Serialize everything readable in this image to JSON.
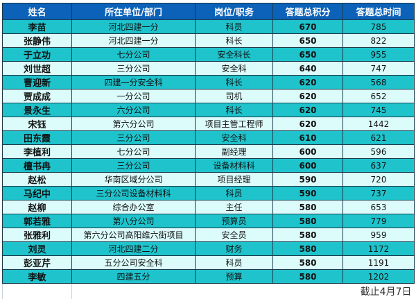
{
  "headers": [
    "姓名",
    "所在单位/部门",
    "岗位/职务",
    "答题总积分",
    "答题总时间"
  ],
  "rows": [
    {
      "name": "李苗",
      "unit": "河北四建一分",
      "post": "科员",
      "score": "670",
      "time": "785"
    },
    {
      "name": "张静伟",
      "unit": "河北四建一分",
      "post": "科长",
      "score": "650",
      "time": "822"
    },
    {
      "name": "于立功",
      "unit": "七分公司",
      "post": "安全科长",
      "score": "650",
      "time": "955"
    },
    {
      "name": "刘世超",
      "unit": "三分公司",
      "post": "安全科",
      "score": "640",
      "time": "747"
    },
    {
      "name": "曹迎新",
      "unit": "四建一分安全科",
      "post": "科长",
      "score": "620",
      "time": "568"
    },
    {
      "name": "贾成成",
      "unit": "一分公司",
      "post": "司机",
      "score": "620",
      "time": "652"
    },
    {
      "name": "景永生",
      "unit": "六分公司",
      "post": "科长",
      "score": "620",
      "time": "745"
    },
    {
      "name": "宋钰",
      "unit": "第六分公司",
      "post": "项目主管工程师",
      "score": "620",
      "time": "1442"
    },
    {
      "name": "田东霞",
      "unit": "三分公司",
      "post": "安全科",
      "score": "610",
      "time": "621"
    },
    {
      "name": "李植利",
      "unit": "七分公司",
      "post": "副经理",
      "score": "600",
      "time": "596"
    },
    {
      "name": "檀书冉",
      "unit": "三分公司",
      "post": "设备材料科",
      "score": "600",
      "time": "637"
    },
    {
      "name": "赵松",
      "unit": "华南区域分公司",
      "post": "项目经理",
      "score": "590",
      "time": "720"
    },
    {
      "name": "马纪中",
      "unit": "三分公司设备材料科",
      "post": "科员",
      "score": "590",
      "time": "737"
    },
    {
      "name": "赵柳",
      "unit": "综合办公室",
      "post": "主任",
      "score": "580",
      "time": "653"
    },
    {
      "name": "郭若雅",
      "unit": "第八分公司",
      "post": "预算员",
      "score": "580",
      "time": "779"
    },
    {
      "name": "张雅利",
      "unit": "第六分公司高阳维六街项目",
      "post": "安全员",
      "score": "580",
      "time": "959"
    },
    {
      "name": "刘灵",
      "unit": "河北四建二分",
      "post": "财务",
      "score": "580",
      "time": "1172"
    },
    {
      "name": "彭亚芹",
      "unit": "五分公司安全科",
      "post": "科员",
      "score": "580",
      "time": "1191"
    },
    {
      "name": "李敏",
      "unit": "四建五分",
      "post": "预算",
      "score": "580",
      "time": "1202"
    }
  ],
  "footer_note": "截止4月7日",
  "colors": {
    "header": "#0c62b8",
    "row_teal": "#1ec3cc",
    "row_light": "#dcfcfb"
  }
}
